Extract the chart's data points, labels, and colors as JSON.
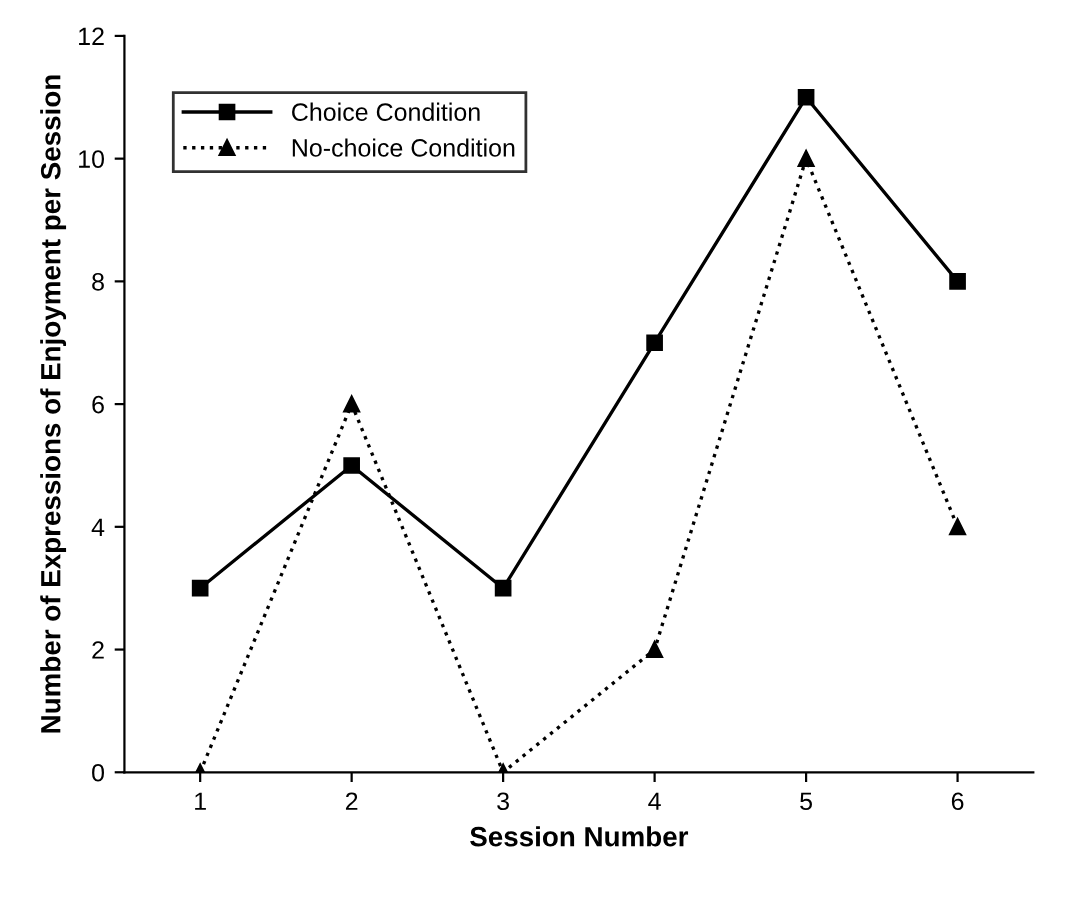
{
  "chart_data": {
    "type": "line",
    "xlabel": "Session Number",
    "ylabel": "Number of Expressions of Enjoyment per Session",
    "categories": [
      "1",
      "2",
      "3",
      "4",
      "5",
      "6"
    ],
    "series": [
      {
        "name": "Choice Condition",
        "color": "#000000",
        "marker": "square",
        "line_style": "solid",
        "values": [
          3,
          5,
          3,
          7,
          11,
          8
        ]
      },
      {
        "name": "No-choice Condition",
        "color": "#000000",
        "marker": "triangle",
        "line_style": "dotted",
        "values": [
          0,
          6,
          0,
          2,
          10,
          4
        ]
      }
    ],
    "ylim": [
      0,
      12
    ],
    "yticks": [
      0,
      2,
      4,
      6,
      8,
      10,
      12
    ],
    "grid": false,
    "legend": "top left"
  }
}
